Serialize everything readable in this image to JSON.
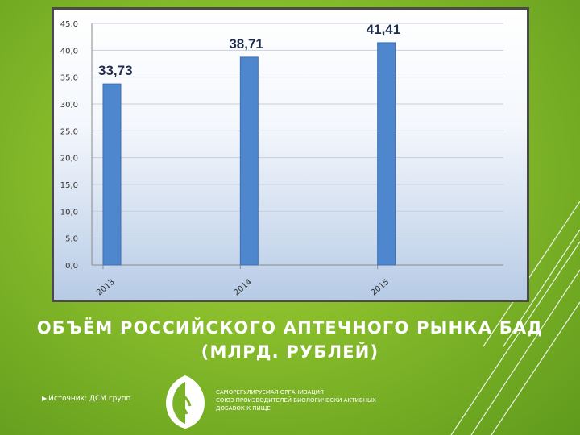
{
  "chart_data": {
    "type": "bar",
    "categories": [
      "2013",
      "2014",
      "2015"
    ],
    "values": [
      33.73,
      38.71,
      41.41
    ],
    "value_labels": [
      "33,73",
      "38,71",
      "41,41"
    ],
    "yticks": [
      "0,0",
      "5,0",
      "10,0",
      "15,0",
      "20,0",
      "25,0",
      "30,0",
      "35,0",
      "40,0",
      "45,0"
    ],
    "ylim": [
      0,
      45
    ],
    "grid": true,
    "bar_color": "#4f87cf",
    "title": "",
    "xlabel": "",
    "ylabel": ""
  },
  "slide": {
    "title_line1": "ОБЪЁМ РОССИЙСКОГО АПТЕЧНОГО РЫНКА БАД",
    "title_line2": "(МЛРД. РУБЛЕЙ)",
    "source": "Источник: ДСМ групп",
    "org_line1": "САМОРЕГУЛИРУЕМАЯ ОРГАНИЗАЦИЯ",
    "org_line2": "СОЮЗ ПРОИЗВОДИТЕЛЕЙ БИОЛОГИЧЕСКИ АКТИВНЫХ",
    "org_line3": "ДОБАВОК К ПИЩЕ"
  },
  "colors": {
    "background": "#86bb2a",
    "bar": "#4f87cf",
    "logo": "#ffffff"
  },
  "icons": {
    "logo": "leaf-logo-icon",
    "source_bullet": "triangle-bullet-icon"
  }
}
